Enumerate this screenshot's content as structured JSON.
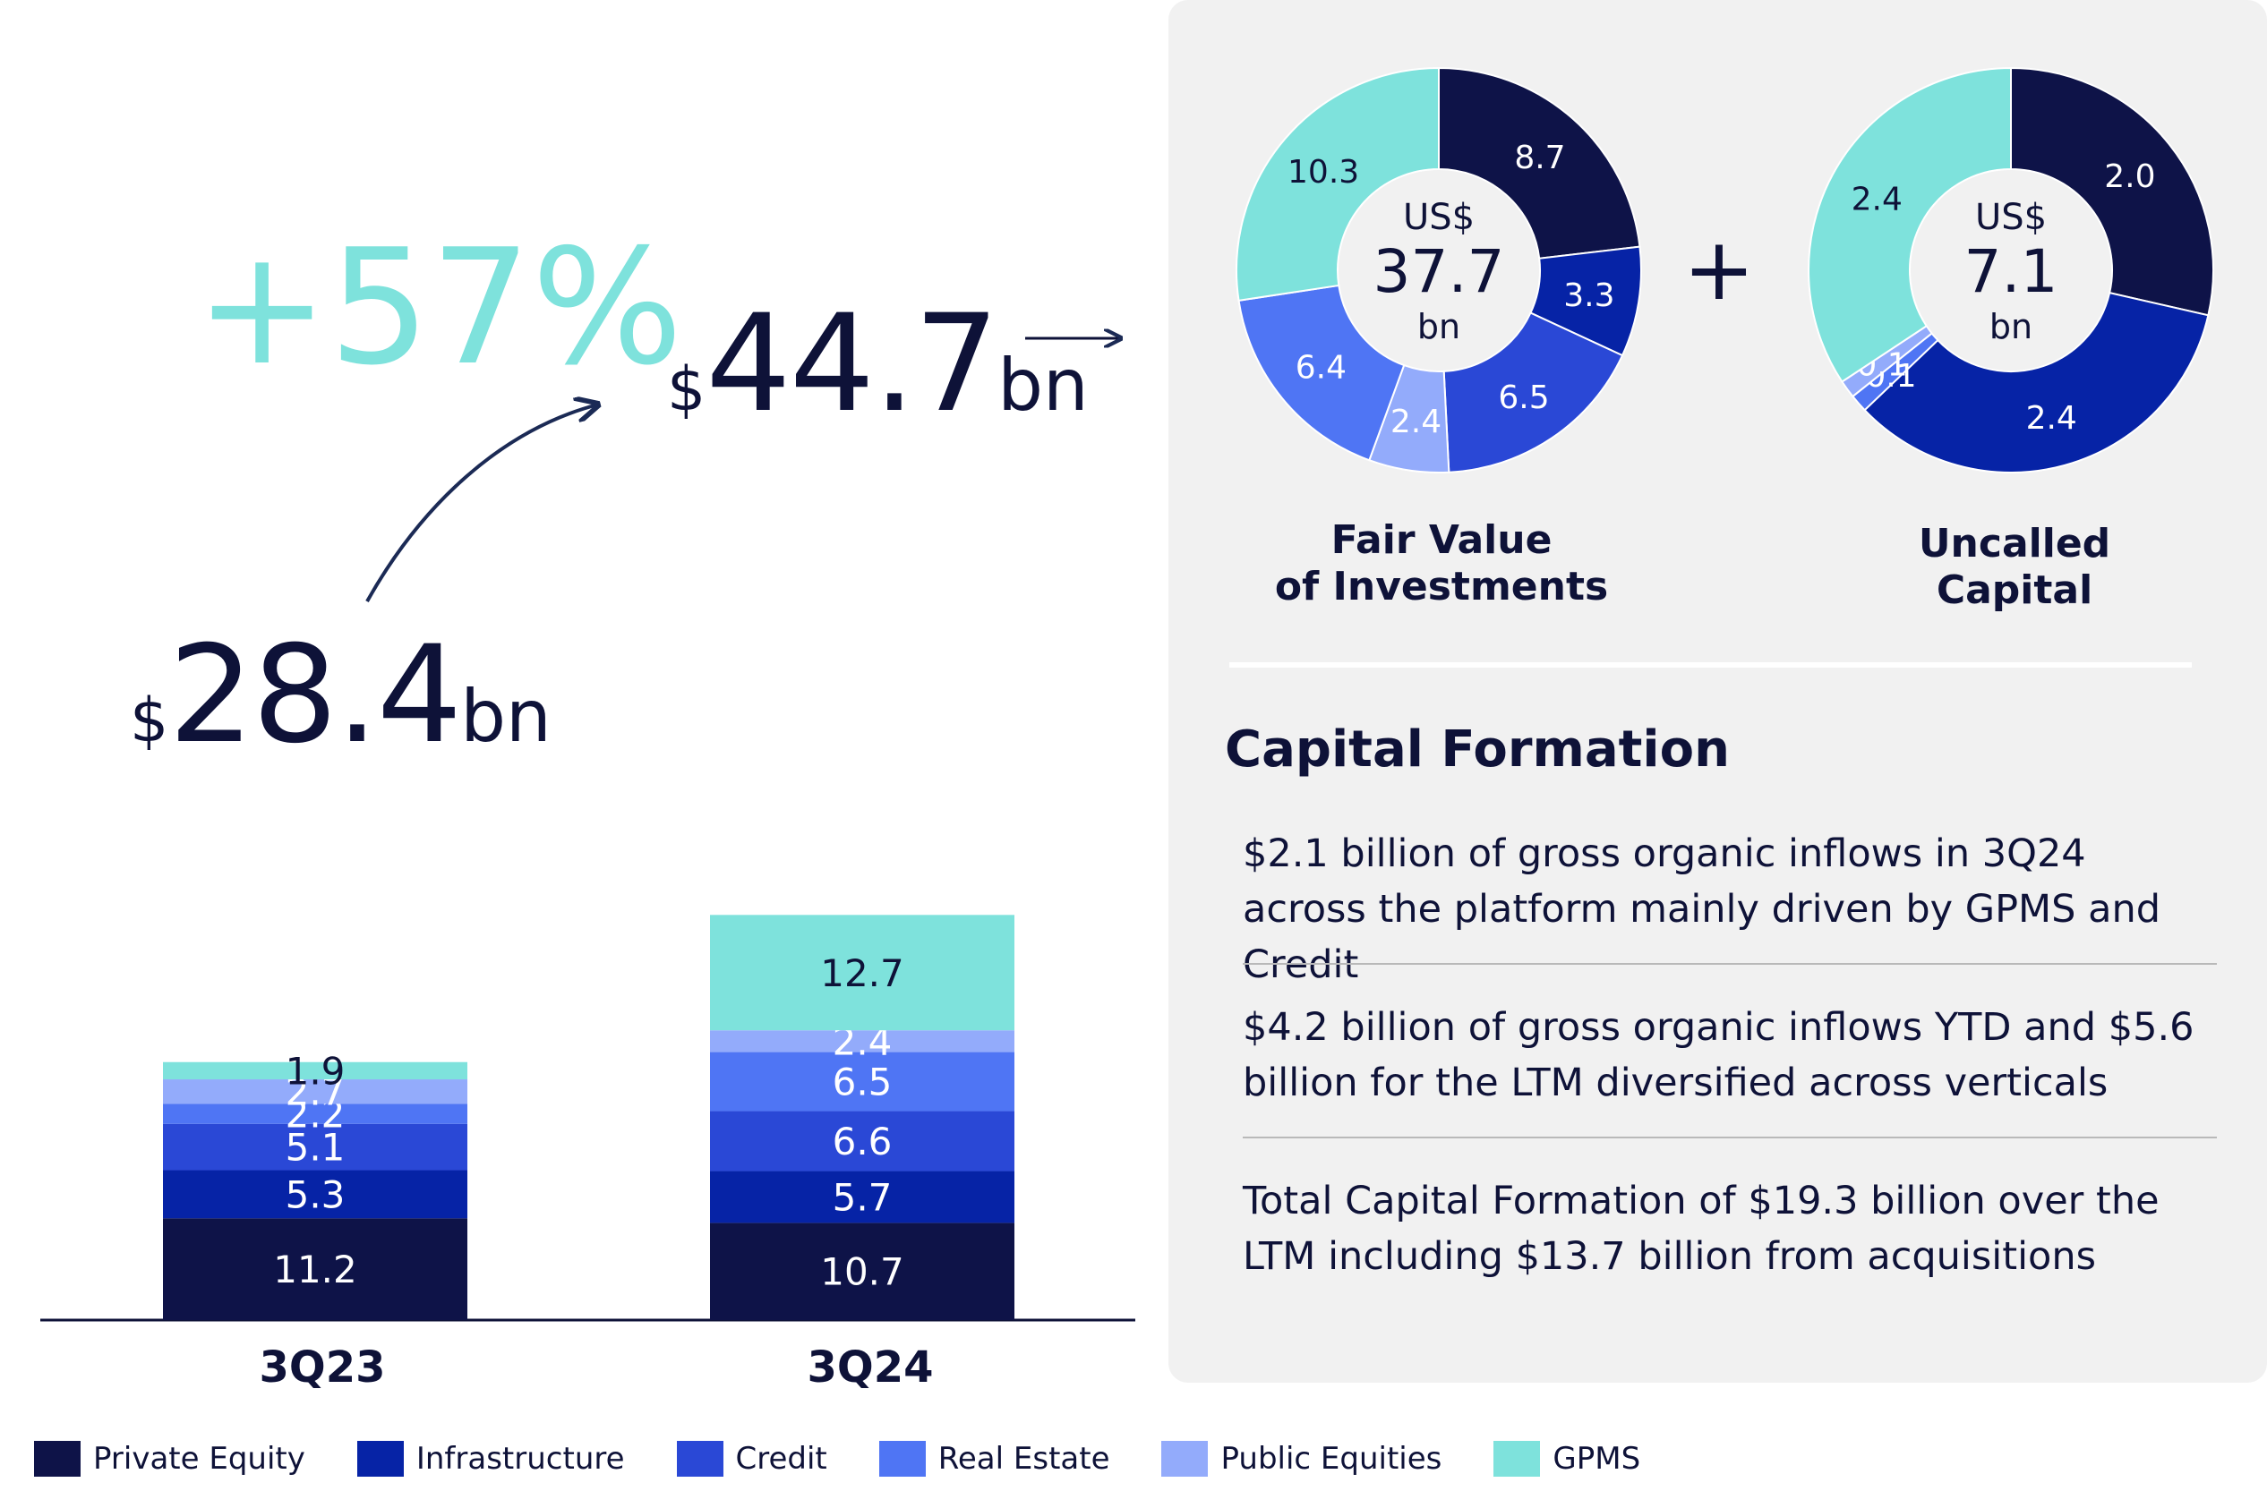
{
  "chart_data": [
    {
      "type": "bar",
      "stacked": true,
      "categories": [
        "3Q23",
        "3Q24"
      ],
      "series": [
        {
          "name": "Private Equity",
          "values": [
            11.2,
            10.7
          ],
          "color": "#0e1348"
        },
        {
          "name": "Infrastructure",
          "values": [
            5.3,
            5.7
          ],
          "color": "#0623a6"
        },
        {
          "name": "Credit",
          "values": [
            5.1,
            6.6
          ],
          "color": "#2a48d6"
        },
        {
          "name": "Real Estate",
          "values": [
            2.2,
            6.5
          ],
          "color": "#4f75f4"
        },
        {
          "name": "Public Equities",
          "values": [
            2.7,
            2.4
          ],
          "color": "#93abfb"
        },
        {
          "name": "GPMS",
          "values": [
            1.9,
            12.7
          ],
          "color": "#7ee2dc"
        }
      ],
      "totals": [
        {
          "currency": "$",
          "value": "28.4",
          "unit": "bn"
        },
        {
          "currency": "$",
          "value": "44.7",
          "unit": "bn"
        }
      ],
      "growth_label": "+57%",
      "legend_position": "bottom"
    },
    {
      "type": "pie",
      "title": "Fair Value\nof Investments",
      "center": {
        "currency": "US$",
        "value": "37.7",
        "unit": "bn"
      },
      "slices": [
        {
          "series": "Private Equity",
          "value": 8.7,
          "label": "8.7"
        },
        {
          "series": "Infrastructure",
          "value": 3.3,
          "label": "3.3"
        },
        {
          "series": "Credit",
          "value": 6.5,
          "label": "6.5"
        },
        {
          "series": "Public Equities",
          "value": 2.4,
          "label": "2.4"
        },
        {
          "series": "Real Estate",
          "value": 6.4,
          "label": "6.4"
        },
        {
          "series": "GPMS",
          "value": 10.3,
          "label": "10.3"
        }
      ]
    },
    {
      "type": "pie",
      "title": "Uncalled Capital",
      "center": {
        "currency": "US$",
        "value": "7.1",
        "unit": "bn"
      },
      "slices": [
        {
          "series": "Private Equity",
          "value": 2.0,
          "label": "2.0"
        },
        {
          "series": "Infrastructure",
          "value": 2.4,
          "label": "2.4"
        },
        {
          "series": "Real Estate",
          "value": 0.1,
          "label": "0.1"
        },
        {
          "series": "Public Equities",
          "value": 0.1,
          "label": "0.1"
        },
        {
          "series": "GPMS",
          "value": 2.4,
          "label": "2.4"
        }
      ]
    }
  ],
  "plus_sign": "+",
  "capital_formation": {
    "title": "Capital Formation",
    "items": [
      "$2.1 billion of gross organic inflows in 3Q24 across the platform mainly driven by GPMS and Credit",
      "$4.2 billion of gross organic inflows YTD and $5.6 billion for the LTM diversified across verticals",
      "Total Capital Formation of $19.3 billion over the LTM including $13.7 billion from acquisitions"
    ]
  },
  "colors": {
    "navy_text": "#0e1238",
    "panel_bg": "#f1f1f1",
    "accent_teal": "#7ee2dc"
  }
}
